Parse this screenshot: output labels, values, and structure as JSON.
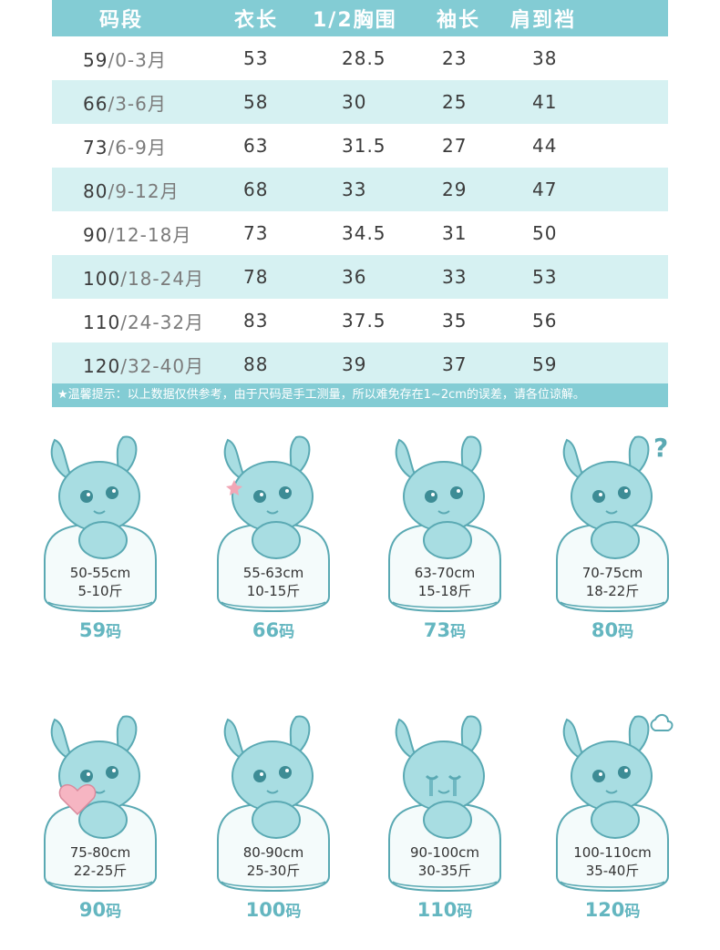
{
  "table": {
    "headers": [
      "码段",
      "衣长",
      "1/2胸围",
      "袖长",
      "肩到裆"
    ],
    "rows": [
      {
        "size": "59",
        "age": "0-3月",
        "length": "53",
        "chest": "28.5",
        "sleeve": "23",
        "shoulder": "38"
      },
      {
        "size": "66",
        "age": "3-6月",
        "length": "58",
        "chest": "30",
        "sleeve": "25",
        "shoulder": "41"
      },
      {
        "size": "73",
        "age": "6-9月",
        "length": "63",
        "chest": "31.5",
        "sleeve": "27",
        "shoulder": "44"
      },
      {
        "size": "80",
        "age": "9-12月",
        "length": "68",
        "chest": "33",
        "sleeve": "29",
        "shoulder": "47"
      },
      {
        "size": "90",
        "age": "12-18月",
        "length": "73",
        "chest": "34.5",
        "sleeve": "31",
        "shoulder": "50"
      },
      {
        "size": "100",
        "age": "18-24月",
        "length": "78",
        "chest": "36",
        "sleeve": "33",
        "shoulder": "53"
      },
      {
        "size": "110",
        "age": "24-32月",
        "length": "83",
        "chest": "37.5",
        "sleeve": "35",
        "shoulder": "56"
      },
      {
        "size": "120",
        "age": "32-40月",
        "length": "88",
        "chest": "39",
        "sleeve": "37",
        "shoulder": "59"
      }
    ],
    "separator": "/"
  },
  "note": "★温馨提示：以上数据仅供参考，由于尺码是手工测量，所以难免存在1~2cm的误差，请各位谅解。",
  "cards": [
    {
      "height": "50-55cm",
      "weight": "5-10斤",
      "label": "59",
      "unit": "码",
      "icon": "bunny-sitting-icon"
    },
    {
      "height": "55-63cm",
      "weight": "10-15斤",
      "label": "66",
      "unit": "码",
      "icon": "bunny-star-icon"
    },
    {
      "height": "63-70cm",
      "weight": "15-18斤",
      "label": "73",
      "unit": "码",
      "icon": "bunny-sitting-icon"
    },
    {
      "height": "70-75cm",
      "weight": "18-22斤",
      "label": "80",
      "unit": "码",
      "icon": "bunny-question-icon"
    },
    {
      "height": "75-80cm",
      "weight": "22-25斤",
      "label": "90",
      "unit": "码",
      "icon": "bunny-heart-icon"
    },
    {
      "height": "80-90cm",
      "weight": "25-30斤",
      "label": "100",
      "unit": "码",
      "icon": "bunny-sitting-icon"
    },
    {
      "height": "90-100cm",
      "weight": "30-35斤",
      "label": "110",
      "unit": "码",
      "icon": "bunny-crying-icon"
    },
    {
      "height": "100-110cm",
      "weight": "35-40斤",
      "label": "120",
      "unit": "码",
      "icon": "bunny-angry-icon"
    }
  ],
  "colors": {
    "header": "#83ccd4",
    "stripe": "#d6f1f2",
    "bunny": "#a8dde2",
    "bunny_outline": "#5aa9b3",
    "label": "#64b6c0"
  }
}
